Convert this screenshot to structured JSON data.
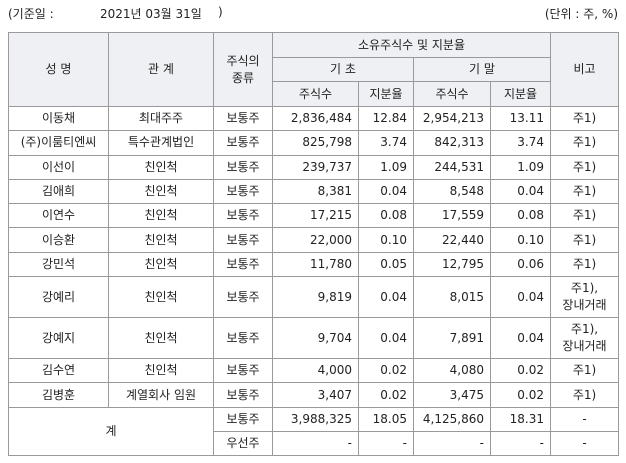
{
  "header": {
    "date_label": "(기준일 :",
    "date": "2021년 03월 31일",
    "date_close": ")",
    "unit": "(단위 : 주, %)"
  },
  "table": {
    "headers": {
      "name": "성 명",
      "relation": "관 계",
      "stock_type": "주식의\n종류",
      "holdings": "소유주식수 및 지분율",
      "begin": "기 초",
      "end": "기 말",
      "shares_begin": "주식수",
      "ratio_begin": "지분율",
      "shares_end": "주식수",
      "ratio_end": "지분율",
      "note": "비고"
    },
    "rows": [
      [
        "이동채",
        "최대주주",
        "보통주",
        "2,836,484",
        "12.84",
        "2,954,213",
        "13.11",
        "주1)"
      ],
      [
        "(주)이룸티엔씨",
        "특수관계법인",
        "보통주",
        "825,798",
        "3.74",
        "842,313",
        "3.74",
        "주1)"
      ],
      [
        "이선이",
        "친인척",
        "보통주",
        "239,737",
        "1.09",
        "244,531",
        "1.09",
        "주1)"
      ],
      [
        "김애희",
        "친인척",
        "보통주",
        "8,381",
        "0.04",
        "8,548",
        "0.04",
        "주1)"
      ],
      [
        "이연수",
        "친인척",
        "보통주",
        "17,215",
        "0.08",
        "17,559",
        "0.08",
        "주1)"
      ],
      [
        "이승환",
        "친인척",
        "보통주",
        "22,000",
        "0.10",
        "22,440",
        "0.10",
        "주1)"
      ],
      [
        "강민석",
        "친인척",
        "보통주",
        "11,780",
        "0.05",
        "12,795",
        "0.06",
        "주1)"
      ],
      [
        "강예리",
        "친인척",
        "보통주",
        "9,819",
        "0.04",
        "8,015",
        "0.04",
        "주1),\n장내거래"
      ],
      [
        "강예지",
        "친인척",
        "보통주",
        "9,704",
        "0.04",
        "7,891",
        "0.04",
        "주1),\n장내거래"
      ],
      [
        "김수연",
        "친인척",
        "보통주",
        "4,000",
        "0.02",
        "4,080",
        "0.02",
        "주1)"
      ],
      [
        "김병훈",
        "계열회사 임원",
        "보통주",
        "3,407",
        "0.02",
        "3,475",
        "0.02",
        "주1)"
      ]
    ],
    "total": {
      "label": "계",
      "rows": [
        [
          "보통주",
          "3,988,325",
          "18.05",
          "4,125,860",
          "18.31",
          "-"
        ],
        [
          "우선주",
          "-",
          "-",
          "-",
          "-",
          "-"
        ]
      ]
    }
  }
}
